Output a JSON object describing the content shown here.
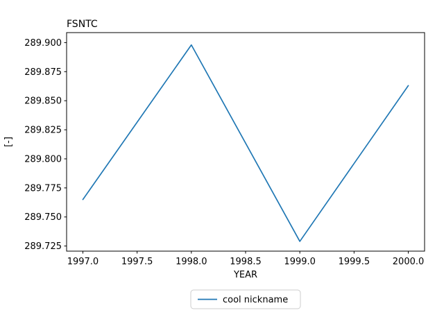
{
  "figure": {
    "background": "#ffffff",
    "frame_color": "#000000",
    "text_color": "#000000"
  },
  "chart_data": {
    "type": "line",
    "title": "FSNTC",
    "xlabel": "YEAR",
    "ylabel": "[-]",
    "x": [
      1997.0,
      1998.0,
      1999.0,
      2000.0
    ],
    "series": [
      {
        "name": "cool nickname",
        "color": "#1f77b4",
        "values": [
          289.765,
          289.898,
          289.729,
          289.863
        ]
      }
    ],
    "xlim": [
      1996.85,
      2000.15
    ],
    "ylim": [
      289.7206,
      289.9086
    ],
    "xticks": {
      "values": [
        1997.0,
        1997.5,
        1998.0,
        1998.5,
        1999.0,
        1999.5,
        2000.0
      ],
      "labels": [
        "1997.0",
        "1997.5",
        "1998.0",
        "1998.5",
        "1999.0",
        "1999.5",
        "2000.0"
      ]
    },
    "yticks": {
      "values": [
        289.725,
        289.75,
        289.775,
        289.8,
        289.825,
        289.85,
        289.875,
        289.9
      ],
      "labels": [
        "289.725",
        "289.750",
        "289.775",
        "289.800",
        "289.825",
        "289.850",
        "289.875",
        "289.900"
      ]
    },
    "grid": false,
    "legend_position": "below-center"
  }
}
